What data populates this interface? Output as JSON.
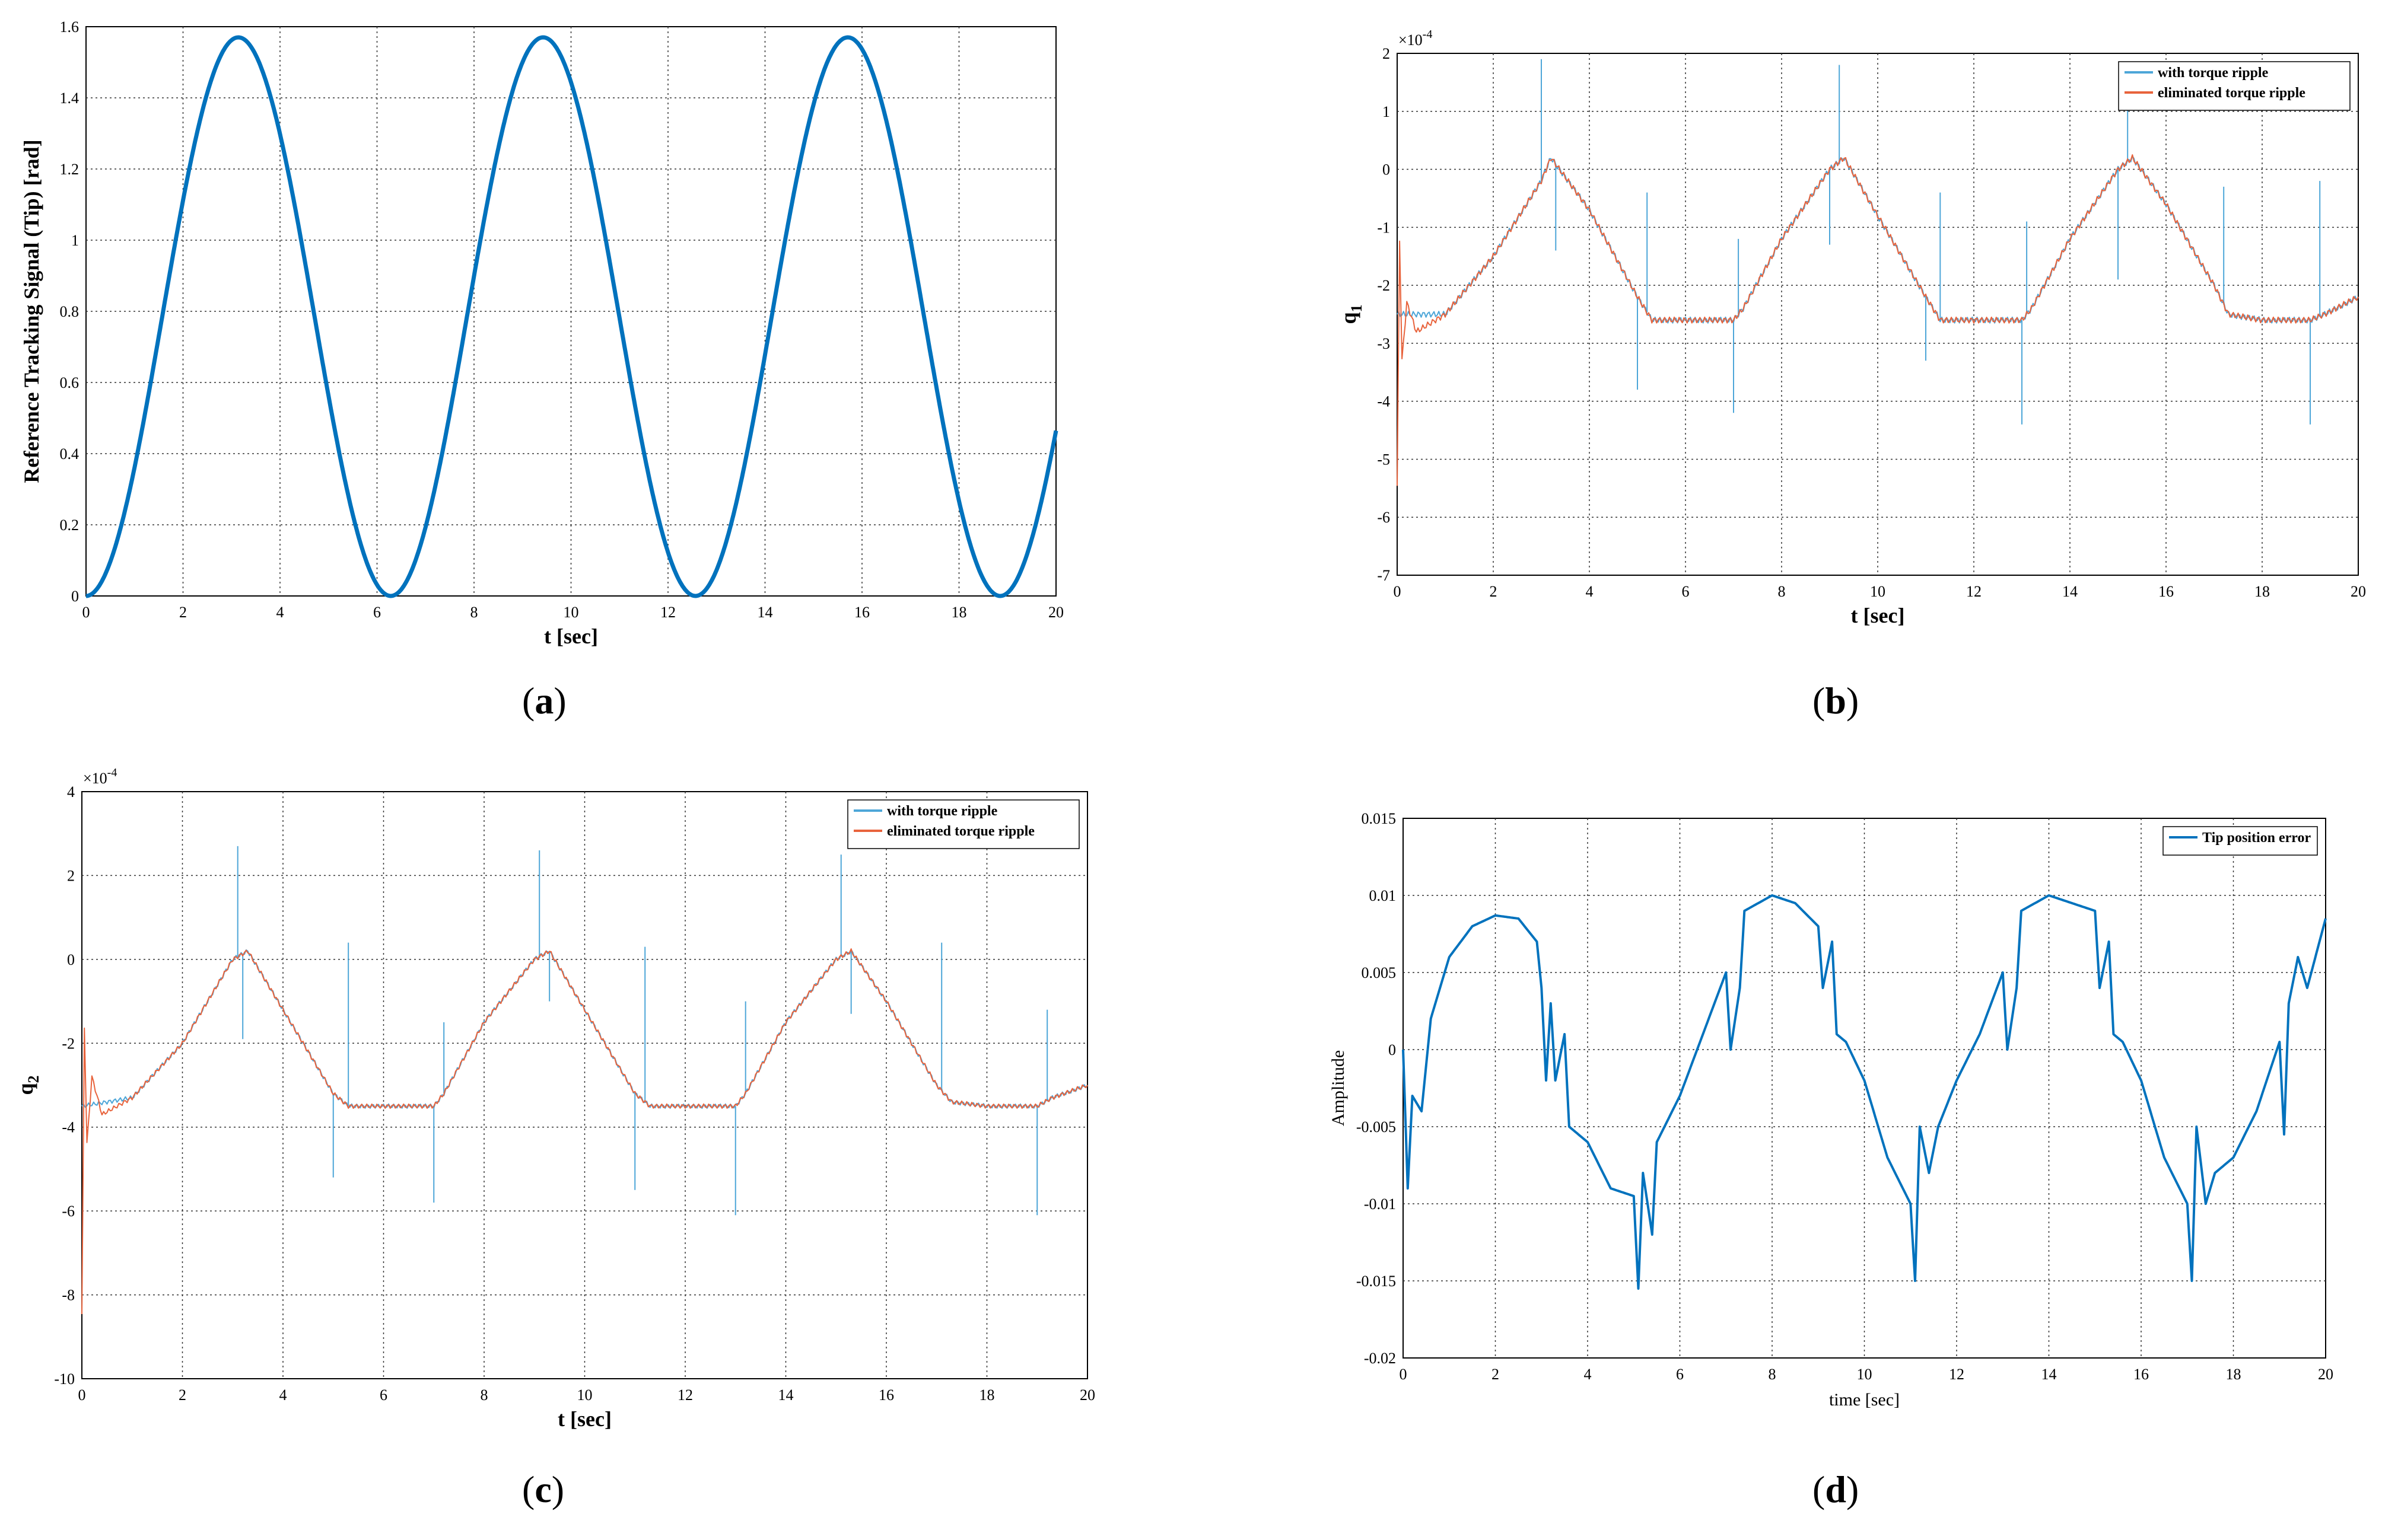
{
  "colors": {
    "series_a": "#0072bd",
    "torque": "#4da6d8",
    "eliminated": "#e8633c",
    "grid": "#333333"
  },
  "panels": [
    {
      "id": "a",
      "caption_open": "(",
      "caption_letter": "a",
      "caption_close": ")"
    },
    {
      "id": "b",
      "caption_open": "(",
      "caption_letter": "b",
      "caption_close": ")"
    },
    {
      "id": "c",
      "caption_open": "(",
      "caption_letter": "c",
      "caption_close": ")"
    },
    {
      "id": "d",
      "caption_open": "(",
      "caption_letter": "d",
      "caption_close": ")"
    }
  ],
  "chart_data": [
    {
      "type": "line",
      "panel": "a",
      "xlabel": "t [sec]",
      "ylabel": "Reference Tracking Signal (Tip) [rad]",
      "xlim": [
        0,
        20
      ],
      "ylim": [
        0,
        1.6
      ],
      "xticks": [
        "0",
        "2",
        "4",
        "6",
        "8",
        "10",
        "12",
        "14",
        "16",
        "18",
        "20"
      ],
      "yticks": [
        "0",
        "0.2",
        "0.4",
        "0.6",
        "0.8",
        "1",
        "1.2",
        "1.4",
        "1.6"
      ],
      "grid": true,
      "series": [
        {
          "x": [
            0,
            0.5,
            1,
            1.5,
            2,
            2.5,
            3,
            3.14,
            3.5,
            4,
            4.5,
            5,
            5.5,
            6,
            6.28,
            6.5,
            7,
            7.5,
            8,
            8.5,
            9,
            9.42,
            10,
            10.5,
            11,
            11.5,
            12,
            12.57,
            13,
            13.5,
            14,
            14.5,
            15,
            15.71,
            16,
            16.5,
            17,
            17.5,
            18,
            18.85,
            19,
            19.5,
            20
          ],
          "y": [
            0,
            0.097,
            0.361,
            0.725,
            1.084,
            1.344,
            1.565,
            1.57,
            1.523,
            1.333,
            1.049,
            0.654,
            0.256,
            0.016,
            0,
            0.038,
            0.386,
            0.917,
            1.287,
            1.509,
            1.555,
            1.57,
            1.45,
            1.044,
            0.535,
            0.13,
            0.006,
            0,
            0.103,
            0.372,
            0.776,
            1.178,
            1.48,
            1.57,
            1.51,
            1.295,
            0.871,
            0.41,
            0.089,
            0,
            0.017,
            0.146,
            0.46
          ]
        }
      ]
    },
    {
      "type": "line",
      "panel": "b",
      "xlabel": "t [sec]",
      "ylabel": "q",
      "ylabel_sub": "1",
      "exponent_base": "×10",
      "exponent_power": "-4",
      "xlim": [
        0,
        20
      ],
      "ylim": [
        -7,
        2
      ],
      "xticks": [
        "0",
        "2",
        "4",
        "6",
        "8",
        "10",
        "12",
        "14",
        "16",
        "18",
        "20"
      ],
      "yticks": [
        "-7",
        "-6",
        "-5",
        "-4",
        "-3",
        "-2",
        "-1",
        "0",
        "1",
        "2"
      ],
      "grid": true,
      "legend": [
        "with torque ripple",
        "eliminated torque ripple"
      ],
      "legend_position": "top-right",
      "series": [
        {
          "name": "with torque ripple",
          "x": [
            0,
            1,
            2,
            3,
            3.2,
            4,
            5,
            5.3,
            6,
            7,
            7.2,
            8,
            9,
            9.3,
            10,
            11,
            11.3,
            12,
            13,
            13.2,
            14,
            15,
            15.3,
            16,
            17,
            17.3,
            18,
            19,
            19.3,
            20
          ],
          "y": [
            -2.5,
            -2.5,
            -1.5,
            -0.2,
            0.2,
            -0.7,
            -2.2,
            -2.6,
            -2.6,
            -2.6,
            -2.4,
            -1.2,
            0.0,
            0.2,
            -0.8,
            -2.2,
            -2.6,
            -2.6,
            -2.6,
            -2.4,
            -1.2,
            0.0,
            0.2,
            -0.6,
            -2.0,
            -2.5,
            -2.6,
            -2.6,
            -2.5,
            -2.2
          ],
          "spikes": [
            [
              3.0,
              1.9
            ],
            [
              3.3,
              -1.4
            ],
            [
              5.0,
              -3.8
            ],
            [
              5.2,
              -0.4
            ],
            [
              7.0,
              -4.2
            ],
            [
              7.1,
              -1.2
            ],
            [
              9.0,
              -1.3
            ],
            [
              9.2,
              1.8
            ],
            [
              11.0,
              -3.3
            ],
            [
              11.3,
              -0.4
            ],
            [
              13.0,
              -4.4
            ],
            [
              13.1,
              -0.9
            ],
            [
              15.0,
              -1.9
            ],
            [
              15.2,
              1.8
            ],
            [
              17.0,
              -2.0
            ],
            [
              17.2,
              -0.3
            ],
            [
              19.0,
              -4.4
            ],
            [
              19.2,
              -0.2
            ]
          ]
        },
        {
          "name": "eliminated torque ripple",
          "x": [
            0,
            0.05,
            0.1,
            0.2,
            0.4,
            1,
            2,
            3,
            3.2,
            4,
            5,
            5.3,
            6,
            7,
            7.2,
            8,
            9,
            9.3,
            10,
            11,
            11.3,
            12,
            13,
            13.2,
            14,
            15,
            15.3,
            16,
            17,
            17.3,
            18,
            19,
            19.3,
            20
          ],
          "y": [
            -5.5,
            -1.2,
            -3.3,
            -2.3,
            -2.8,
            -2.5,
            -1.5,
            -0.2,
            0.2,
            -0.7,
            -2.2,
            -2.6,
            -2.6,
            -2.6,
            -2.4,
            -1.2,
            0.0,
            0.2,
            -0.8,
            -2.2,
            -2.6,
            -2.6,
            -2.6,
            -2.4,
            -1.2,
            0.0,
            0.2,
            -0.6,
            -2.0,
            -2.5,
            -2.6,
            -2.6,
            -2.5,
            -2.2
          ]
        }
      ]
    },
    {
      "type": "line",
      "panel": "c",
      "xlabel": "t [sec]",
      "ylabel": "q",
      "ylabel_sub": "2",
      "exponent_base": "×10",
      "exponent_power": "-4",
      "xlim": [
        0,
        20
      ],
      "ylim": [
        -10,
        4
      ],
      "xticks": [
        "0",
        "2",
        "4",
        "6",
        "8",
        "10",
        "12",
        "14",
        "16",
        "18",
        "20"
      ],
      "yticks": [
        "-10",
        "-8",
        "-6",
        "-4",
        "-2",
        "0",
        "2",
        "4"
      ],
      "grid": true,
      "legend": [
        "with torque ripple",
        "eliminated torque ripple"
      ],
      "legend_position": "top-right",
      "series": [
        {
          "name": "with torque ripple",
          "x": [
            0,
            1,
            2,
            3,
            3.3,
            4,
            5,
            5.3,
            6,
            7,
            7.2,
            8,
            9,
            9.3,
            10,
            11,
            11.3,
            12,
            13,
            13.2,
            14,
            15,
            15.3,
            16,
            17,
            17.3,
            18,
            19,
            19.3,
            20
          ],
          "y": [
            -3.5,
            -3.3,
            -2.0,
            0.0,
            0.2,
            -1.2,
            -3.2,
            -3.5,
            -3.5,
            -3.5,
            -3.2,
            -1.5,
            0.0,
            0.2,
            -1.2,
            -3.2,
            -3.5,
            -3.5,
            -3.5,
            -3.2,
            -1.5,
            0.0,
            0.2,
            -1.0,
            -3.0,
            -3.4,
            -3.5,
            -3.5,
            -3.3,
            -3.0
          ],
          "spikes": [
            [
              3.1,
              2.7
            ],
            [
              3.2,
              -1.9
            ],
            [
              5.0,
              -5.2
            ],
            [
              5.3,
              0.4
            ],
            [
              7.0,
              -5.8
            ],
            [
              7.2,
              -1.5
            ],
            [
              9.1,
              2.6
            ],
            [
              9.3,
              -1.0
            ],
            [
              11.0,
              -5.5
            ],
            [
              11.2,
              0.3
            ],
            [
              13.0,
              -6.1
            ],
            [
              13.2,
              -1.0
            ],
            [
              15.1,
              2.5
            ],
            [
              15.3,
              -1.3
            ],
            [
              17.0,
              -3.0
            ],
            [
              17.1,
              0.4
            ],
            [
              19.0,
              -6.1
            ],
            [
              19.2,
              -1.2
            ]
          ]
        },
        {
          "name": "eliminated torque ripple",
          "x": [
            0,
            0.05,
            0.1,
            0.2,
            0.4,
            1,
            2,
            3,
            3.3,
            4,
            5,
            5.3,
            6,
            7,
            7.2,
            8,
            9,
            9.3,
            10,
            11,
            11.3,
            12,
            13,
            13.2,
            14,
            15,
            15.3,
            16,
            17,
            17.3,
            18,
            19,
            19.3,
            20
          ],
          "y": [
            -8.5,
            -1.6,
            -4.4,
            -2.8,
            -3.7,
            -3.3,
            -2.0,
            0.0,
            0.2,
            -1.2,
            -3.2,
            -3.5,
            -3.5,
            -3.5,
            -3.2,
            -1.5,
            0.0,
            0.2,
            -1.2,
            -3.2,
            -3.5,
            -3.5,
            -3.5,
            -3.2,
            -1.5,
            0.0,
            0.2,
            -1.0,
            -3.0,
            -3.4,
            -3.5,
            -3.5,
            -3.3,
            -3.0
          ]
        }
      ]
    },
    {
      "type": "line",
      "panel": "d",
      "xlabel": "time [sec]",
      "ylabel": "Amplitude",
      "xlim": [
        0,
        20
      ],
      "ylim": [
        -0.02,
        0.015
      ],
      "xticks": [
        "0",
        "2",
        "4",
        "6",
        "8",
        "10",
        "12",
        "14",
        "16",
        "18",
        "20"
      ],
      "yticks": [
        "-0.02",
        "-0.015",
        "-0.01",
        "-0.005",
        "0",
        "0.005",
        "0.01",
        "0.015"
      ],
      "grid": true,
      "legend": [
        "Tip position error"
      ],
      "legend_position": "top-right",
      "series": [
        {
          "name": "Tip position error",
          "x": [
            0,
            0.1,
            0.2,
            0.4,
            0.6,
            1,
            1.5,
            2,
            2.5,
            2.9,
            3.0,
            3.1,
            3.2,
            3.3,
            3.5,
            3.6,
            4,
            4.5,
            5,
            5.1,
            5.2,
            5.4,
            5.5,
            6,
            6.5,
            7,
            7.1,
            7.3,
            7.4,
            8,
            8.5,
            9,
            9.1,
            9.3,
            9.4,
            9.6,
            10,
            10.5,
            11,
            11.1,
            11.2,
            11.4,
            11.6,
            12,
            12.5,
            13,
            13.1,
            13.3,
            13.4,
            14,
            14.5,
            15,
            15.1,
            15.3,
            15.4,
            15.6,
            16,
            16.5,
            17,
            17.1,
            17.2,
            17.4,
            17.6,
            18,
            18.5,
            19,
            19.1,
            19.2,
            19.4,
            19.6,
            20
          ],
          "y": [
            0,
            -0.009,
            -0.003,
            -0.004,
            0.002,
            0.006,
            0.008,
            0.0087,
            0.0085,
            0.007,
            0.004,
            -0.002,
            0.003,
            -0.002,
            0.001,
            -0.005,
            -0.006,
            -0.009,
            -0.0095,
            -0.0155,
            -0.008,
            -0.012,
            -0.006,
            -0.003,
            0.001,
            0.005,
            0.0,
            0.004,
            0.009,
            0.01,
            0.0095,
            0.008,
            0.004,
            0.007,
            0.001,
            0.0005,
            -0.002,
            -0.007,
            -0.01,
            -0.015,
            -0.005,
            -0.008,
            -0.005,
            -0.002,
            0.001,
            0.005,
            0.0,
            0.004,
            0.009,
            0.01,
            0.0095,
            0.009,
            0.004,
            0.007,
            0.001,
            0.0005,
            -0.002,
            -0.007,
            -0.01,
            -0.015,
            -0.005,
            -0.01,
            -0.008,
            -0.007,
            -0.004,
            0.0005,
            -0.0055,
            0.003,
            0.006,
            0.004,
            0.0085
          ]
        }
      ]
    }
  ]
}
